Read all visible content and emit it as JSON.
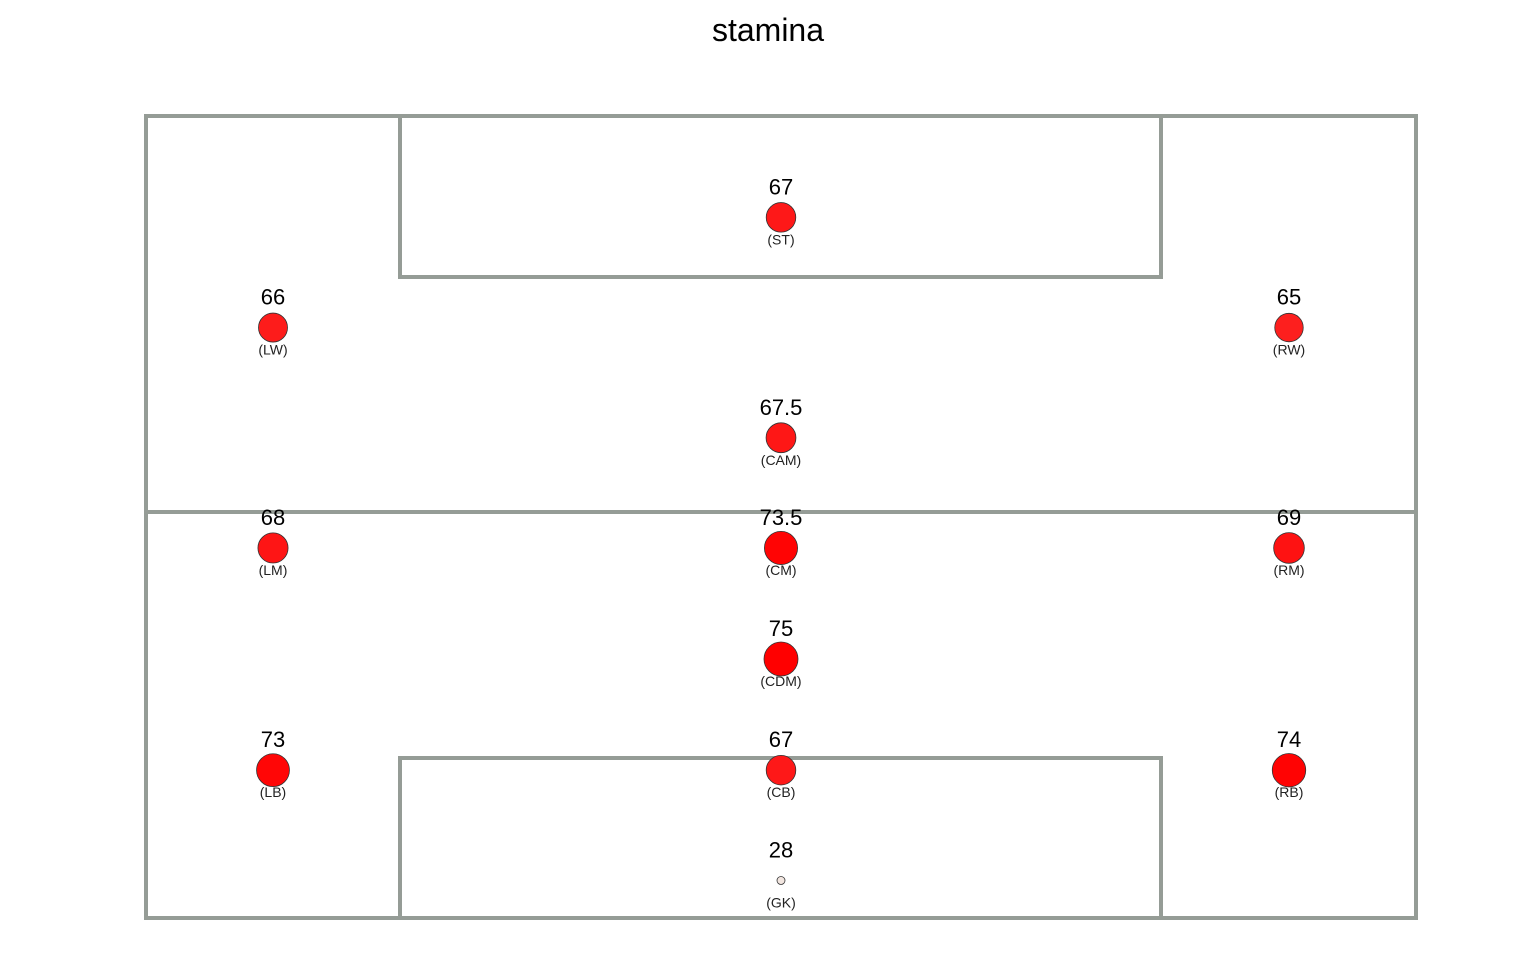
{
  "chart_data": {
    "type": "scatter",
    "title": "stamina",
    "colors": {
      "pitch_fill": "#e5efe6",
      "pitch_line": "#959c96",
      "point_low": "#f2e6e0",
      "point_high": "#ff0000",
      "point_stroke": "#333333"
    },
    "size_range": [
      28,
      75
    ],
    "players": [
      {
        "position": "ST",
        "label": "(ST)",
        "value": "67",
        "x": 0.5,
        "y": 0.8736
      },
      {
        "position": "LW",
        "label": "(LW)",
        "value": "66",
        "x": 0.1,
        "y": 0.7362
      },
      {
        "position": "RW",
        "label": "(RW)",
        "value": "65",
        "x": 0.9,
        "y": 0.7362
      },
      {
        "position": "CAM",
        "label": "(CAM)",
        "value": "67.5",
        "x": 0.5,
        "y": 0.5988
      },
      {
        "position": "LM",
        "label": "(LM)",
        "value": "68",
        "x": 0.1,
        "y": 0.4614
      },
      {
        "position": "CM",
        "label": "(CM)",
        "value": "73.5",
        "x": 0.5,
        "y": 0.4614
      },
      {
        "position": "RM",
        "label": "(RM)",
        "value": "69",
        "x": 0.9,
        "y": 0.4614
      },
      {
        "position": "CDM",
        "label": "(CDM)",
        "value": "75",
        "x": 0.5,
        "y": 0.3229
      },
      {
        "position": "LB",
        "label": "(LB)",
        "value": "73",
        "x": 0.1,
        "y": 0.1843
      },
      {
        "position": "CB",
        "label": "(CB)",
        "value": "67",
        "x": 0.5,
        "y": 0.1843
      },
      {
        "position": "RB",
        "label": "(RB)",
        "value": "74",
        "x": 0.9,
        "y": 0.1843
      },
      {
        "position": "GK",
        "label": "(GK)",
        "value": "28",
        "x": 0.5,
        "y": 0.0468
      }
    ]
  }
}
